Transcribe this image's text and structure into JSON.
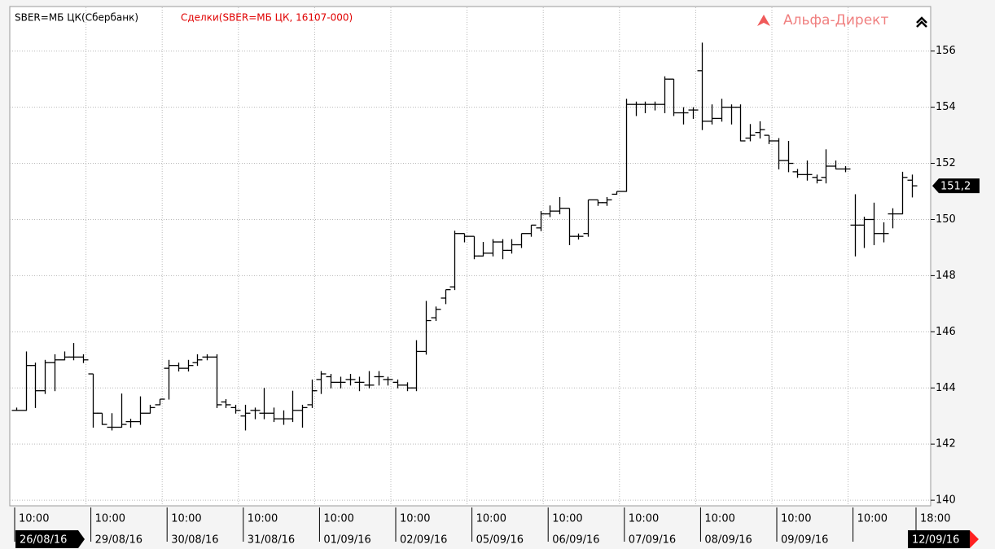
{
  "chart_data": {
    "type": "ohlc",
    "title": "SBER=МБ ЦК(Сбербанк)",
    "subtitle": "Сделки(SBER=МБ ЦК, 16107-000)",
    "brand": "Альфа-Директ",
    "color": "#000000",
    "ylim": [
      139.8,
      157.5
    ],
    "yticks": [
      140,
      142,
      144,
      146,
      148,
      150,
      152,
      154,
      156
    ],
    "grid": true,
    "last_price": {
      "value": 151.2,
      "label": "151,2"
    },
    "x_labels": [
      {
        "time": "10:00",
        "date": "26/08/16"
      },
      {
        "time": "10:00",
        "date": "29/08/16"
      },
      {
        "time": "10:00",
        "date": "30/08/16"
      },
      {
        "time": "10:00",
        "date": "31/08/16"
      },
      {
        "time": "10:00",
        "date": "01/09/16"
      },
      {
        "time": "10:00",
        "date": "02/09/16"
      },
      {
        "time": "10:00",
        "date": "05/09/16"
      },
      {
        "time": "10:00",
        "date": "06/09/16"
      },
      {
        "time": "10:00",
        "date": "07/09/16"
      },
      {
        "time": "10:00",
        "date": "08/09/16"
      },
      {
        "time": "10:00",
        "date": "09/09/16"
      },
      {
        "time": "10:00"
      },
      {
        "time": "18:00",
        "date": "12/09/16"
      }
    ],
    "bars": [
      [
        143.2,
        143.3,
        143.2,
        143.2
      ],
      [
        143.2,
        145.3,
        143.2,
        144.8
      ],
      [
        144.8,
        144.9,
        143.3,
        143.9
      ],
      [
        143.9,
        145.0,
        143.8,
        144.9
      ],
      [
        144.9,
        145.2,
        143.9,
        145.0
      ],
      [
        145.0,
        145.3,
        145.0,
        145.1
      ],
      [
        145.1,
        145.6,
        145.0,
        145.1
      ],
      [
        145.1,
        145.2,
        144.9,
        145.0
      ],
      [
        144.5,
        144.5,
        142.6,
        143.1
      ],
      [
        143.1,
        143.1,
        142.7,
        142.7
      ],
      [
        142.6,
        143.1,
        142.5,
        142.6
      ],
      [
        142.6,
        143.8,
        142.6,
        142.7
      ],
      [
        142.8,
        142.9,
        142.6,
        142.8
      ],
      [
        142.8,
        143.7,
        142.7,
        143.1
      ],
      [
        143.1,
        143.4,
        143.1,
        143.3
      ],
      [
        143.4,
        143.6,
        143.4,
        143.6
      ],
      [
        144.7,
        145.0,
        143.6,
        144.8
      ],
      [
        144.8,
        144.9,
        144.6,
        144.7
      ],
      [
        144.7,
        145.0,
        144.6,
        144.8
      ],
      [
        144.9,
        145.2,
        144.8,
        145.0
      ],
      [
        145.1,
        145.2,
        145.0,
        145.1
      ],
      [
        145.1,
        145.2,
        143.3,
        143.4
      ],
      [
        143.5,
        143.6,
        143.3,
        143.4
      ],
      [
        143.3,
        143.4,
        143.1,
        143.2
      ],
      [
        143.0,
        143.4,
        142.5,
        143.1
      ],
      [
        143.2,
        143.3,
        142.9,
        143.2
      ],
      [
        143.1,
        144.0,
        142.9,
        143.1
      ],
      [
        143.1,
        143.3,
        142.8,
        142.9
      ],
      [
        142.9,
        143.2,
        142.7,
        142.9
      ],
      [
        142.9,
        143.9,
        142.8,
        143.2
      ],
      [
        143.2,
        143.4,
        142.6,
        143.3
      ],
      [
        143.4,
        144.3,
        143.3,
        143.9
      ],
      [
        144.3,
        144.6,
        143.8,
        144.5
      ],
      [
        144.4,
        144.5,
        144.0,
        144.2
      ],
      [
        144.2,
        144.4,
        144.0,
        144.2
      ],
      [
        144.3,
        144.5,
        144.1,
        144.3
      ],
      [
        144.2,
        144.4,
        143.9,
        144.2
      ],
      [
        144.1,
        144.6,
        144.0,
        144.1
      ],
      [
        144.4,
        144.6,
        144.1,
        144.4
      ],
      [
        144.3,
        144.4,
        144.1,
        144.3
      ],
      [
        144.2,
        144.3,
        144.0,
        144.1
      ],
      [
        144.1,
        144.2,
        143.9,
        144.0
      ],
      [
        144.0,
        145.7,
        143.9,
        145.3
      ],
      [
        145.3,
        147.1,
        145.2,
        146.4
      ],
      [
        146.5,
        146.9,
        146.4,
        146.8
      ],
      [
        147.2,
        147.5,
        147.0,
        147.5
      ],
      [
        147.6,
        149.6,
        147.5,
        149.5
      ],
      [
        149.5,
        149.5,
        149.2,
        149.4
      ],
      [
        149.4,
        149.4,
        148.6,
        148.7
      ],
      [
        148.7,
        149.2,
        148.7,
        148.8
      ],
      [
        148.8,
        149.3,
        148.7,
        149.2
      ],
      [
        149.2,
        149.3,
        148.6,
        148.9
      ],
      [
        148.9,
        149.3,
        148.8,
        149.1
      ],
      [
        149.1,
        149.5,
        149.0,
        149.5
      ],
      [
        149.5,
        149.8,
        149.4,
        149.8
      ],
      [
        149.7,
        150.3,
        149.6,
        150.2
      ],
      [
        150.2,
        150.5,
        150.1,
        150.3
      ],
      [
        150.3,
        150.8,
        150.2,
        150.4
      ],
      [
        150.4,
        150.4,
        149.1,
        149.4
      ],
      [
        149.4,
        149.5,
        149.3,
        149.4
      ],
      [
        149.5,
        150.7,
        149.4,
        150.7
      ],
      [
        150.7,
        150.7,
        150.5,
        150.6
      ],
      [
        150.6,
        150.8,
        150.5,
        150.7
      ],
      [
        150.9,
        151.0,
        150.9,
        151.0
      ],
      [
        151.0,
        154.3,
        151.0,
        154.1
      ],
      [
        154.1,
        154.2,
        153.7,
        154.1
      ],
      [
        154.1,
        154.2,
        153.8,
        154.1
      ],
      [
        154.1,
        154.2,
        153.9,
        154.1
      ],
      [
        154.1,
        155.1,
        153.8,
        155.0
      ],
      [
        155.0,
        155.0,
        153.7,
        153.8
      ],
      [
        153.8,
        154.0,
        153.4,
        153.8
      ],
      [
        153.9,
        154.0,
        153.6,
        153.9
      ],
      [
        155.3,
        156.3,
        153.2,
        153.5
      ],
      [
        153.5,
        154.1,
        153.4,
        153.6
      ],
      [
        153.6,
        154.3,
        153.5,
        154.0
      ],
      [
        154.0,
        154.1,
        153.4,
        154.0
      ],
      [
        154.0,
        154.1,
        152.8,
        152.8
      ],
      [
        152.9,
        153.4,
        152.8,
        153.0
      ],
      [
        153.1,
        153.5,
        152.9,
        153.2
      ],
      [
        153.0,
        153.0,
        152.7,
        152.8
      ],
      [
        152.8,
        152.9,
        151.8,
        152.1
      ],
      [
        152.1,
        152.8,
        151.7,
        152.0
      ],
      [
        151.7,
        151.8,
        151.5,
        151.6
      ],
      [
        151.6,
        152.1,
        151.4,
        151.6
      ],
      [
        151.5,
        151.6,
        151.3,
        151.4
      ],
      [
        151.5,
        152.5,
        151.3,
        151.9
      ],
      [
        151.9,
        152.1,
        151.8,
        151.8
      ],
      [
        151.8,
        151.9,
        151.7,
        151.8
      ],
      [
        149.8,
        150.9,
        148.7,
        149.8
      ],
      [
        149.8,
        150.1,
        149.0,
        150.0
      ],
      [
        150.0,
        150.6,
        149.1,
        149.5
      ],
      [
        149.5,
        149.9,
        149.2,
        149.5
      ],
      [
        150.2,
        150.4,
        149.7,
        150.2
      ],
      [
        150.2,
        151.7,
        150.2,
        151.5
      ],
      [
        151.4,
        151.6,
        150.8,
        151.2
      ]
    ]
  }
}
